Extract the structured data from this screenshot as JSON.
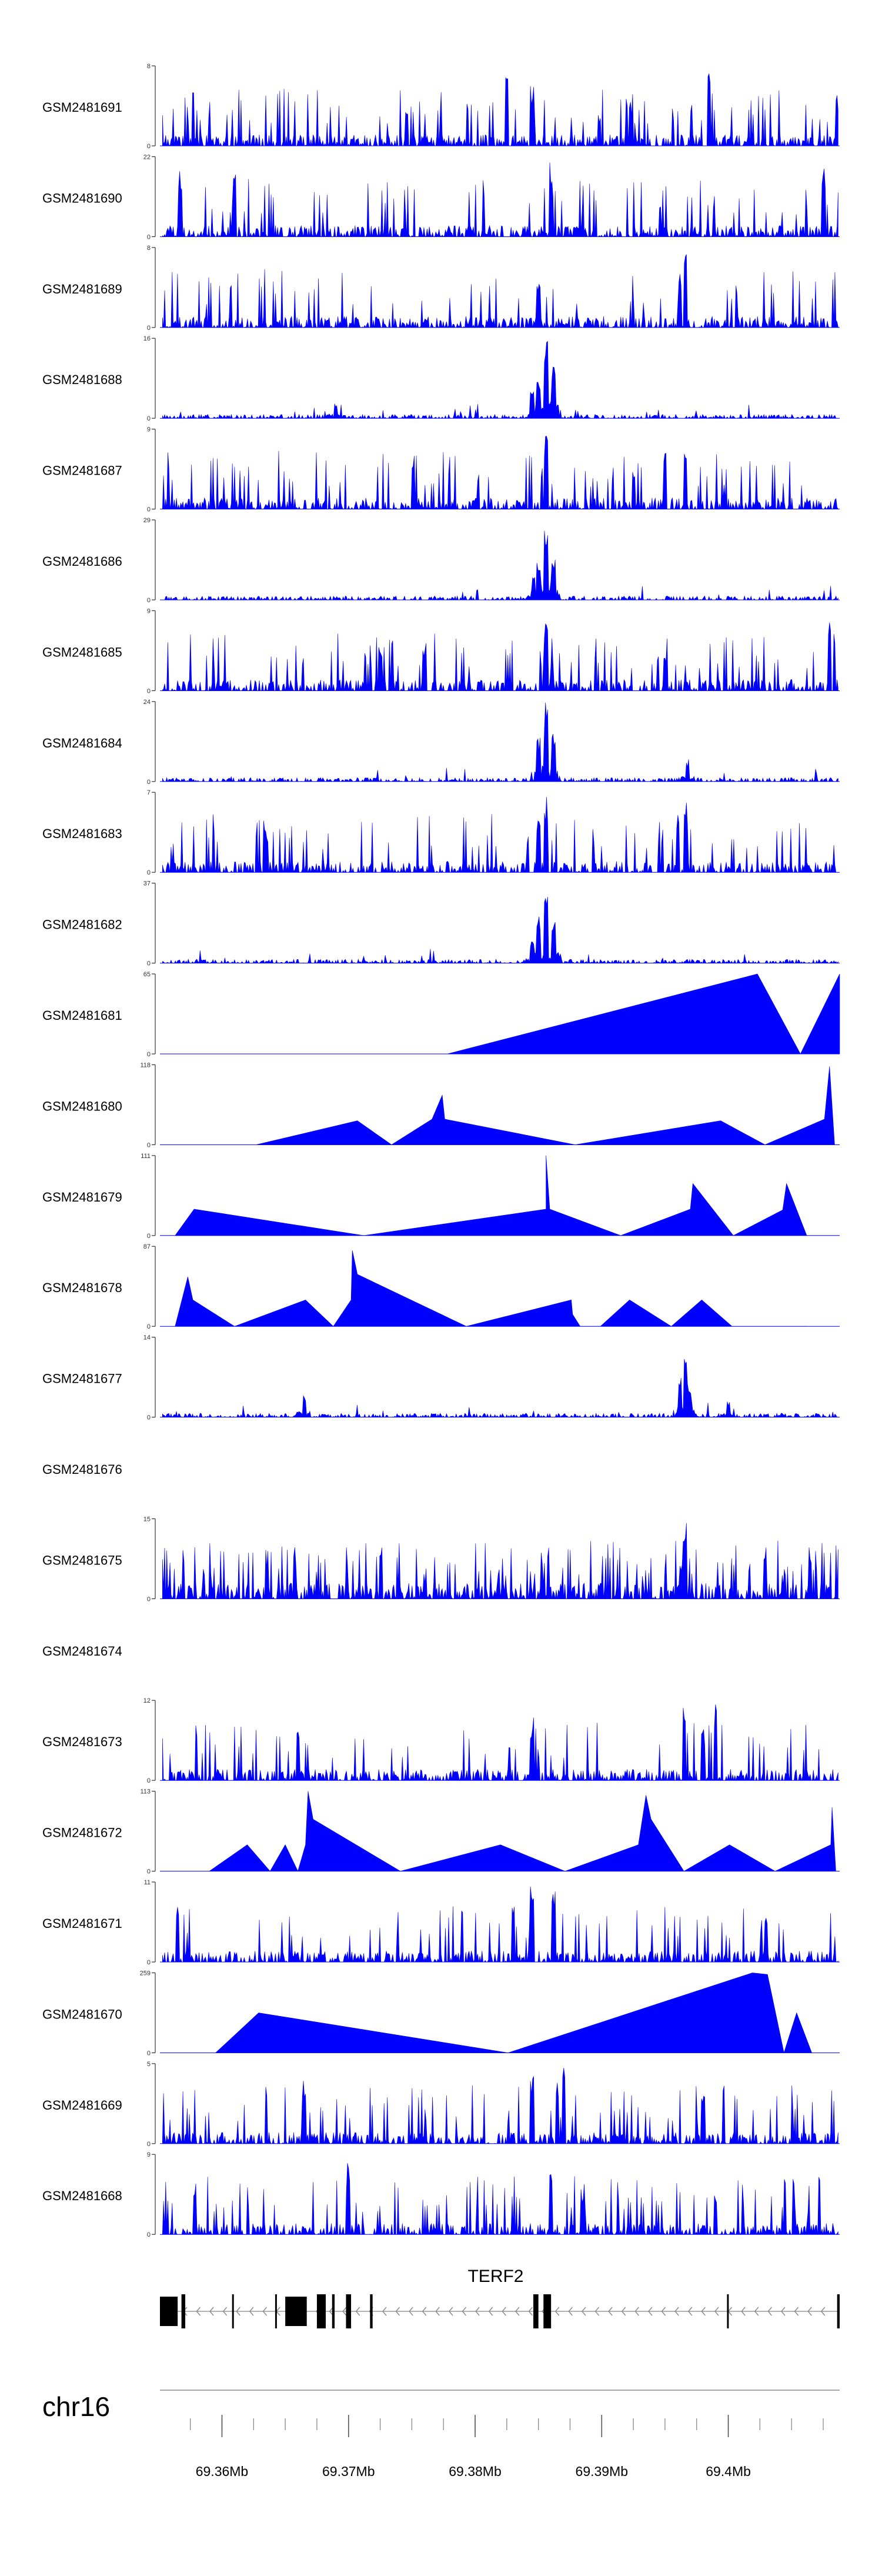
{
  "chart_data": {
    "type": "area",
    "title": "",
    "series_color": "#0000ff",
    "axis_color": "#333333",
    "tracks": [
      {
        "name": "GSM2481691",
        "ymax": 8,
        "style": "spiky",
        "seed": 11,
        "peaks": [
          [
            69.3746,
            0.55
          ],
          [
            69.3825,
            0.92
          ],
          [
            69.3845,
            0.75
          ],
          [
            69.3923,
            0.55
          ],
          [
            69.3985,
            0.95
          ]
        ]
      },
      {
        "name": "GSM2481690",
        "ymax": 22,
        "style": "triangles",
        "seed": 12,
        "peaks": [
          [
            69.3567,
            0.9
          ],
          [
            69.361,
            0.95
          ],
          [
            69.386,
            0.98
          ],
          [
            69.4075,
            1.0
          ]
        ]
      },
      {
        "name": "GSM2481689",
        "ymax": 8,
        "style": "spiky",
        "seed": 13,
        "peaks": [
          [
            69.3966,
            1.0
          ],
          [
            69.3962,
            0.7
          ],
          [
            69.385,
            0.6
          ]
        ]
      },
      {
        "name": "GSM2481688",
        "ymax": 16,
        "style": "low",
        "seed": 14,
        "peaks": [
          [
            69.3856,
            1.0
          ],
          [
            69.385,
            0.55
          ],
          [
            69.3862,
            0.7
          ],
          [
            69.3845,
            0.35
          ],
          [
            69.369,
            0.22
          ]
        ]
      },
      {
        "name": "GSM2481687",
        "ymax": 9,
        "style": "spiky",
        "seed": 15,
        "peaks": [
          [
            69.3856,
            1.0
          ],
          [
            69.3966,
            0.95
          ],
          [
            69.395,
            0.75
          ],
          [
            69.3925,
            0.55
          ]
        ]
      },
      {
        "name": "GSM2481686",
        "ymax": 29,
        "style": "low",
        "seed": 16,
        "peaks": [
          [
            69.3856,
            1.0
          ],
          [
            69.385,
            0.55
          ],
          [
            69.3862,
            0.6
          ],
          [
            69.3846,
            0.3
          ]
        ]
      },
      {
        "name": "GSM2481685",
        "ymax": 9,
        "style": "spiky",
        "seed": 17,
        "peaks": [
          [
            69.3856,
            0.95
          ],
          [
            69.376,
            0.62
          ],
          [
            69.3725,
            0.55
          ],
          [
            69.408,
            0.95
          ],
          [
            69.395,
            0.5
          ]
        ]
      },
      {
        "name": "GSM2481684",
        "ymax": 24,
        "style": "low",
        "seed": 18,
        "peaks": [
          [
            69.3856,
            1.0
          ],
          [
            69.385,
            0.55
          ],
          [
            69.3862,
            0.6
          ],
          [
            69.3968,
            0.28
          ]
        ]
      },
      {
        "name": "GSM2481683",
        "ymax": 7,
        "style": "spiky",
        "seed": 19,
        "peaks": [
          [
            69.3856,
            0.95
          ],
          [
            69.3966,
            1.0
          ],
          [
            69.396,
            0.8
          ],
          [
            69.3635,
            0.55
          ],
          [
            69.385,
            0.7
          ]
        ]
      },
      {
        "name": "GSM2481682",
        "ymax": 37,
        "style": "low",
        "seed": 20,
        "peaks": [
          [
            69.3856,
            1.0
          ],
          [
            69.385,
            0.6
          ],
          [
            69.3862,
            0.55
          ],
          [
            69.3845,
            0.3
          ]
        ]
      },
      {
        "name": "GSM2481681",
        "ymax": 65,
        "style": "poly",
        "points": [
          [
            69.3778,
            0
          ],
          [
            69.4023,
            1.0
          ],
          [
            69.4057,
            0
          ],
          [
            69.4088,
            1.0
          ],
          [
            69.4088,
            0
          ]
        ]
      },
      {
        "name": "GSM2481680",
        "ymax": 118,
        "style": "poly",
        "points": [
          [
            69.3627,
            0
          ],
          [
            69.3707,
            0.3
          ],
          [
            69.3734,
            0
          ],
          [
            69.3766,
            0.32
          ],
          [
            69.3774,
            0.62
          ],
          [
            69.3776,
            0.32
          ],
          [
            69.3879,
            0
          ],
          [
            69.3994,
            0.3
          ],
          [
            69.4029,
            0
          ],
          [
            69.4076,
            0.32
          ],
          [
            69.408,
            0.98
          ],
          [
            69.4084,
            0
          ]
        ]
      },
      {
        "name": "GSM2481679",
        "ymax": 111,
        "style": "poly",
        "points": [
          [
            69.3563,
            0
          ],
          [
            69.3578,
            0.33
          ],
          [
            69.3712,
            0
          ],
          [
            69.3856,
            0.33
          ],
          [
            69.3856,
            1.0
          ],
          [
            69.3859,
            0.33
          ],
          [
            69.3915,
            0
          ],
          [
            69.397,
            0.33
          ],
          [
            69.3972,
            0.65
          ],
          [
            69.4004,
            0
          ],
          [
            69.4043,
            0.32
          ],
          [
            69.4046,
            0.65
          ],
          [
            69.4062,
            0
          ]
        ]
      },
      {
        "name": "GSM2481678",
        "ymax": 87,
        "style": "poly",
        "points": [
          [
            69.3563,
            0
          ],
          [
            69.3573,
            0.62
          ],
          [
            69.3577,
            0.33
          ],
          [
            69.361,
            0
          ],
          [
            69.3666,
            0.33
          ],
          [
            69.3688,
            0
          ],
          [
            69.3702,
            0.33
          ],
          [
            69.3703,
            0.95
          ],
          [
            69.3707,
            0.65
          ],
          [
            69.3793,
            0
          ],
          [
            69.3876,
            0.33
          ],
          [
            69.3877,
            0.15
          ],
          [
            69.3883,
            0
          ],
          [
            69.3899,
            0
          ],
          [
            69.3922,
            0.33
          ],
          [
            69.3955,
            0
          ],
          [
            69.3979,
            0.33
          ],
          [
            69.4003,
            0
          ],
          [
            69.4062,
            0
          ]
        ]
      },
      {
        "name": "GSM2481677",
        "ymax": 14,
        "style": "low",
        "seed": 23,
        "peaks": [
          [
            69.3966,
            1.0
          ],
          [
            69.3962,
            0.55
          ],
          [
            69.3969,
            0.45
          ],
          [
            69.3665,
            0.3
          ],
          [
            69.4,
            0.2
          ]
        ]
      },
      {
        "name": "GSM2481676",
        "ymax": null,
        "style": "empty"
      },
      {
        "name": "GSM2481675",
        "ymax": 15,
        "style": "dense",
        "seed": 25,
        "peaks": [
          [
            69.3966,
            1.0
          ],
          [
            69.3963,
            0.5
          ]
        ]
      },
      {
        "name": "GSM2481674",
        "ymax": null,
        "style": "empty"
      },
      {
        "name": "GSM2481673",
        "ymax": 12,
        "style": "spiky",
        "seed": 27,
        "peaks": [
          [
            69.3965,
            0.95
          ],
          [
            69.399,
            0.95
          ],
          [
            69.398,
            0.65
          ],
          [
            69.3845,
            0.8
          ],
          [
            69.366,
            0.75
          ]
        ]
      },
      {
        "name": "GSM2481672",
        "ymax": 113,
        "style": "poly",
        "points": [
          [
            69.359,
            0
          ],
          [
            69.362,
            0.33
          ],
          [
            69.3638,
            0
          ],
          [
            69.365,
            0.33
          ],
          [
            69.366,
            0
          ],
          [
            69.3666,
            0.33
          ],
          [
            69.3668,
            1.0
          ],
          [
            69.3672,
            0.65
          ],
          [
            69.3741,
            0
          ],
          [
            69.382,
            0.33
          ],
          [
            69.3871,
            0
          ],
          [
            69.3929,
            0.33
          ],
          [
            69.3935,
            0.95
          ],
          [
            69.3939,
            0.65
          ],
          [
            69.3965,
            0
          ],
          [
            69.4001,
            0.33
          ],
          [
            69.4037,
            0
          ],
          [
            69.4081,
            0.33
          ],
          [
            69.4082,
            0.8
          ],
          [
            69.4085,
            0
          ]
        ]
      },
      {
        "name": "GSM2481671",
        "ymax": 11,
        "style": "spiky",
        "seed": 29,
        "peaks": [
          [
            69.3845,
            0.95
          ],
          [
            69.3862,
            0.95
          ],
          [
            69.383,
            0.75
          ],
          [
            69.403,
            0.7
          ],
          [
            69.3565,
            0.75
          ]
        ]
      },
      {
        "name": "GSM2481670",
        "ymax": 259,
        "style": "poly",
        "points": [
          [
            69.3595,
            0
          ],
          [
            69.3629,
            0.5
          ],
          [
            69.3826,
            0
          ],
          [
            69.4019,
            1.0
          ],
          [
            69.4031,
            0.98
          ],
          [
            69.4044,
            0
          ],
          [
            69.4054,
            0.5
          ],
          [
            69.4066,
            0
          ]
        ]
      },
      {
        "name": "GSM2481669",
        "ymax": 5,
        "style": "spiky",
        "seed": 31,
        "peaks": [
          [
            69.3845,
            0.9
          ],
          [
            69.3865,
            0.85
          ],
          [
            69.387,
            0.95
          ],
          [
            69.3665,
            0.85
          ],
          [
            69.398,
            0.6
          ]
        ]
      },
      {
        "name": "GSM2481668",
        "ymax": 9,
        "style": "spiky",
        "seed": 32,
        "peaks": [
          [
            69.37,
            1.0
          ],
          [
            69.386,
            0.9
          ],
          [
            69.3885,
            0.6
          ],
          [
            69.399,
            0.6
          ]
        ]
      }
    ],
    "gene": {
      "name": "TERF2",
      "strand": "-",
      "start": 69.3551,
      "end": 69.4088,
      "exons": [
        [
          69.3551,
          69.3565,
          "thick"
        ],
        [
          69.3568,
          69.3571,
          "thin"
        ],
        [
          69.3608,
          69.3609,
          "thin"
        ],
        [
          69.3642,
          69.3643,
          "thin"
        ],
        [
          69.365,
          69.3667,
          "thick"
        ],
        [
          69.3675,
          69.3682,
          "thin"
        ],
        [
          69.3687,
          69.3689,
          "thin"
        ],
        [
          69.3698,
          69.3702,
          "thin"
        ],
        [
          69.3717,
          69.3719,
          "thin"
        ],
        [
          69.3846,
          69.385,
          "thin"
        ],
        [
          69.3854,
          69.386,
          "thin"
        ],
        [
          69.3999,
          69.4,
          "thin"
        ],
        [
          69.4086,
          69.4088,
          "thin"
        ]
      ]
    },
    "axis": {
      "chromosome": "chr16",
      "unit": "Mb",
      "xlim": [
        69.3551,
        69.4088
      ],
      "major_ticks": [
        69.36,
        69.37,
        69.38,
        69.39,
        69.4
      ],
      "major_labels": [
        "69.36Mb",
        "69.37Mb",
        "69.38Mb",
        "69.39Mb",
        "69.4Mb"
      ],
      "minor_tick_step": 0.0025
    }
  }
}
